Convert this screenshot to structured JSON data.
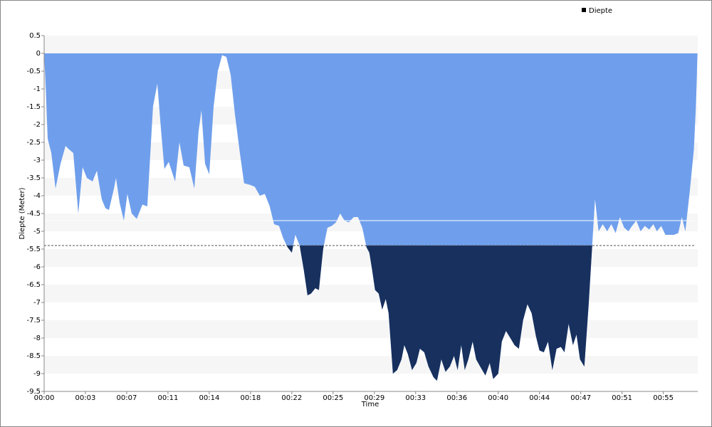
{
  "chart_data": {
    "type": "area",
    "x_label": "Time",
    "y_label": "Diepte (Meter)",
    "xlim": [
      0,
      57.4
    ],
    "ylim": [
      -9.5,
      0.5
    ],
    "xticks": [
      {
        "value": 0,
        "label": "00:00"
      },
      {
        "value": 3.625,
        "label": "00:03"
      },
      {
        "value": 7.25,
        "label": "00:07"
      },
      {
        "value": 10.875,
        "label": "00:11"
      },
      {
        "value": 14.5,
        "label": "00:14"
      },
      {
        "value": 18.125,
        "label": "00:18"
      },
      {
        "value": 21.75,
        "label": "00:22"
      },
      {
        "value": 25.375,
        "label": "00:25"
      },
      {
        "value": 29,
        "label": "00:29"
      },
      {
        "value": 32.625,
        "label": "00:33"
      },
      {
        "value": 36.25,
        "label": "00:36"
      },
      {
        "value": 39.875,
        "label": "00:40"
      },
      {
        "value": 43.5,
        "label": "00:44"
      },
      {
        "value": 47.125,
        "label": "00:47"
      },
      {
        "value": 50.75,
        "label": "00:51"
      },
      {
        "value": 54.375,
        "label": "00:55"
      }
    ],
    "yticks": [
      0.5,
      0,
      -0.5,
      -1,
      -1.5,
      -2,
      -2.5,
      -3,
      -3.5,
      -4,
      -4.5,
      -5,
      -5.5,
      -6,
      -6.5,
      -7,
      -7.5,
      -8,
      -8.5,
      -9,
      -9.5
    ],
    "band_color": "#f6f6f6",
    "legend": "top-right",
    "reference_lines": [
      {
        "value": -5.4,
        "color": "#555555",
        "dashed": true
      },
      {
        "value": -4.7,
        "color": "#ffffff",
        "dashed": false
      }
    ],
    "x": [
      0,
      0.13,
      0.31,
      0.63,
      1.0,
      1.44,
      1.88,
      2.19,
      2.56,
      3.0,
      3.38,
      3.75,
      4.25,
      4.63,
      5.06,
      5.38,
      5.69,
      6.13,
      6.31,
      6.63,
      7.0,
      7.31,
      7.69,
      8.13,
      8.63,
      9.06,
      9.56,
      9.94,
      10.25,
      10.56,
      10.94,
      11.5,
      11.88,
      12.25,
      12.75,
      13.19,
      13.56,
      13.81,
      14.13,
      14.5,
      14.88,
      15.25,
      15.63,
      16.0,
      16.38,
      16.75,
      17.19,
      17.56,
      18.13,
      18.5,
      18.94,
      19.38,
      19.81,
      20.19,
      20.63,
      21.0,
      21.38,
      21.75,
      22.06,
      22.44,
      22.81,
      23.13,
      23.44,
      23.81,
      24.13,
      24.5,
      24.88,
      25.25,
      25.63,
      26.0,
      26.38,
      26.75,
      27.19,
      27.56,
      27.94,
      28.31,
      28.56,
      28.81,
      29.06,
      29.38,
      29.69,
      30.0,
      30.25,
      30.63,
      31.0,
      31.38,
      31.63,
      31.94,
      32.31,
      32.69,
      33.0,
      33.38,
      33.75,
      34.19,
      34.5,
      34.88,
      35.25,
      35.63,
      36.0,
      36.31,
      36.63,
      36.94,
      37.25,
      37.63,
      37.94,
      38.38,
      38.75,
      39.13,
      39.44,
      39.88,
      40.19,
      40.56,
      40.94,
      41.31,
      41.69,
      42.06,
      42.44,
      42.81,
      43.19,
      43.5,
      43.88,
      44.25,
      44.63,
      45.0,
      45.38,
      45.69,
      46.06,
      46.44,
      46.75,
      47.06,
      47.44,
      47.81,
      48.13,
      48.38,
      48.69,
      49.06,
      49.44,
      49.81,
      50.19,
      50.56,
      50.94,
      51.31,
      51.63,
      52.0,
      52.38,
      52.75,
      53.13,
      53.5,
      53.81,
      54.19,
      54.56,
      54.94,
      55.31,
      55.69,
      56.0,
      56.31,
      56.69,
      57.06,
      57.25,
      57.38
    ],
    "series": [
      {
        "name": "Diepte",
        "color": "#6f9fec",
        "deep_color": "#17305e",
        "deep_below": -5.4,
        "legend_color": "#000000",
        "values": [
          0,
          -0.9,
          -2.4,
          -2.8,
          -3.8,
          -3.1,
          -2.6,
          -2.7,
          -2.8,
          -4.5,
          -3.2,
          -3.5,
          -3.6,
          -3.3,
          -4.1,
          -4.35,
          -4.4,
          -3.8,
          -3.5,
          -4.2,
          -4.7,
          -3.95,
          -4.5,
          -4.65,
          -4.25,
          -4.3,
          -1.5,
          -0.85,
          -2.1,
          -3.25,
          -3.05,
          -3.6,
          -2.5,
          -3.15,
          -3.2,
          -3.8,
          -2.2,
          -1.6,
          -3.1,
          -3.4,
          -1.5,
          -0.5,
          -0.05,
          -0.1,
          -0.6,
          -1.7,
          -2.8,
          -3.65,
          -3.7,
          -3.75,
          -4.0,
          -3.95,
          -4.3,
          -4.8,
          -4.85,
          -5.2,
          -5.45,
          -5.6,
          -5.1,
          -5.4,
          -6.1,
          -6.8,
          -6.75,
          -6.6,
          -6.65,
          -5.5,
          -4.9,
          -4.85,
          -4.75,
          -4.5,
          -4.7,
          -4.75,
          -4.6,
          -4.6,
          -4.9,
          -5.45,
          -5.6,
          -6.1,
          -6.65,
          -6.75,
          -7.2,
          -6.9,
          -7.3,
          -9.0,
          -8.9,
          -8.6,
          -8.2,
          -8.45,
          -8.9,
          -8.7,
          -8.3,
          -8.4,
          -8.8,
          -9.1,
          -9.2,
          -8.6,
          -8.95,
          -8.8,
          -8.5,
          -8.9,
          -8.2,
          -8.9,
          -8.6,
          -8.1,
          -8.6,
          -8.85,
          -9.05,
          -8.7,
          -9.15,
          -9.0,
          -8.1,
          -7.8,
          -8.0,
          -8.2,
          -8.3,
          -7.5,
          -7.05,
          -7.3,
          -7.95,
          -8.35,
          -8.4,
          -8.1,
          -8.9,
          -8.3,
          -8.25,
          -8.4,
          -7.6,
          -8.2,
          -7.9,
          -8.6,
          -8.8,
          -7.1,
          -5.4,
          -4.1,
          -5.0,
          -4.8,
          -5.0,
          -4.8,
          -5.05,
          -4.6,
          -4.9,
          -5.0,
          -4.85,
          -4.7,
          -5.0,
          -4.85,
          -4.95,
          -4.8,
          -5.0,
          -4.85,
          -5.1,
          -5.1,
          -5.1,
          -5.05,
          -4.6,
          -5.0,
          -3.9,
          -2.7,
          -1.4,
          0
        ]
      }
    ]
  }
}
